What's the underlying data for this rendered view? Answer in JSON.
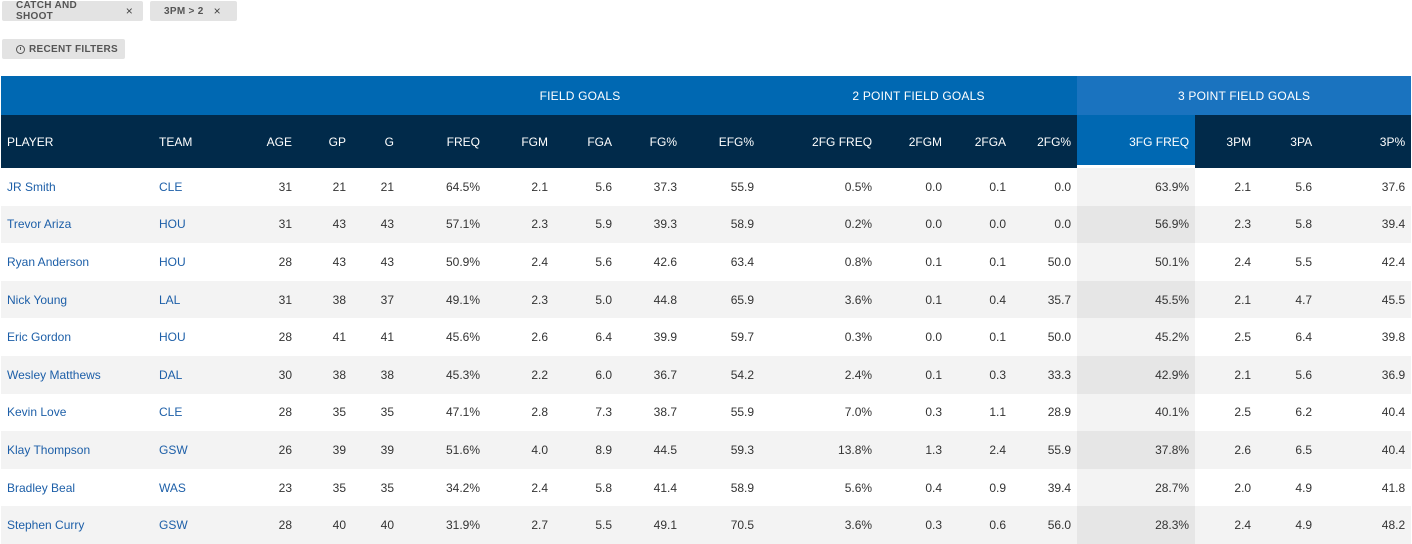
{
  "filters": [
    {
      "label": "CATCH AND SHOOT",
      "remove": "×"
    },
    {
      "label": "3PM > 2",
      "remove": "×"
    }
  ],
  "recent_filters": "RECENT FILTERS",
  "groups": {
    "field_goals": "FIELD GOALS",
    "two_point": "2 POINT FIELD GOALS",
    "three_point": "3 POINT FIELD GOALS"
  },
  "columns": [
    "PLAYER",
    "TEAM",
    "AGE",
    "GP",
    "G",
    "FREQ",
    "FGM",
    "FGA",
    "FG%",
    "EFG%",
    "2FG FREQ",
    "2FGM",
    "2FGA",
    "2FG%",
    "3FG FREQ",
    "3PM",
    "3PA",
    "3P%"
  ],
  "rows": [
    [
      "JR Smith",
      "CLE",
      "31",
      "21",
      "21",
      "64.5%",
      "2.1",
      "5.6",
      "37.3",
      "55.9",
      "0.5%",
      "0.0",
      "0.1",
      "0.0",
      "63.9%",
      "2.1",
      "5.6",
      "37.6"
    ],
    [
      "Trevor Ariza",
      "HOU",
      "31",
      "43",
      "43",
      "57.1%",
      "2.3",
      "5.9",
      "39.3",
      "58.9",
      "0.2%",
      "0.0",
      "0.0",
      "0.0",
      "56.9%",
      "2.3",
      "5.8",
      "39.4"
    ],
    [
      "Ryan Anderson",
      "HOU",
      "28",
      "43",
      "43",
      "50.9%",
      "2.4",
      "5.6",
      "42.6",
      "63.4",
      "0.8%",
      "0.1",
      "0.1",
      "50.0",
      "50.1%",
      "2.4",
      "5.5",
      "42.4"
    ],
    [
      "Nick Young",
      "LAL",
      "31",
      "38",
      "37",
      "49.1%",
      "2.3",
      "5.0",
      "44.8",
      "65.9",
      "3.6%",
      "0.1",
      "0.4",
      "35.7",
      "45.5%",
      "2.1",
      "4.7",
      "45.5"
    ],
    [
      "Eric Gordon",
      "HOU",
      "28",
      "41",
      "41",
      "45.6%",
      "2.6",
      "6.4",
      "39.9",
      "59.7",
      "0.3%",
      "0.0",
      "0.1",
      "50.0",
      "45.2%",
      "2.5",
      "6.4",
      "39.8"
    ],
    [
      "Wesley Matthews",
      "DAL",
      "30",
      "38",
      "38",
      "45.3%",
      "2.2",
      "6.0",
      "36.7",
      "54.2",
      "2.4%",
      "0.1",
      "0.3",
      "33.3",
      "42.9%",
      "2.1",
      "5.6",
      "36.9"
    ],
    [
      "Kevin Love",
      "CLE",
      "28",
      "35",
      "35",
      "47.1%",
      "2.8",
      "7.3",
      "38.7",
      "55.9",
      "7.0%",
      "0.3",
      "1.1",
      "28.9",
      "40.1%",
      "2.5",
      "6.2",
      "40.4"
    ],
    [
      "Klay Thompson",
      "GSW",
      "26",
      "39",
      "39",
      "51.6%",
      "4.0",
      "8.9",
      "44.5",
      "59.3",
      "13.8%",
      "1.3",
      "2.4",
      "55.9",
      "37.8%",
      "2.6",
      "6.5",
      "40.4"
    ],
    [
      "Bradley Beal",
      "WAS",
      "23",
      "35",
      "35",
      "34.2%",
      "2.4",
      "5.8",
      "41.4",
      "58.9",
      "5.6%",
      "0.4",
      "0.9",
      "39.4",
      "28.7%",
      "2.0",
      "4.9",
      "41.8"
    ],
    [
      "Stephen Curry",
      "GSW",
      "28",
      "40",
      "40",
      "31.9%",
      "2.7",
      "5.5",
      "49.1",
      "70.5",
      "3.6%",
      "0.3",
      "0.6",
      "56.0",
      "28.3%",
      "2.4",
      "4.9",
      "48.2"
    ]
  ]
}
